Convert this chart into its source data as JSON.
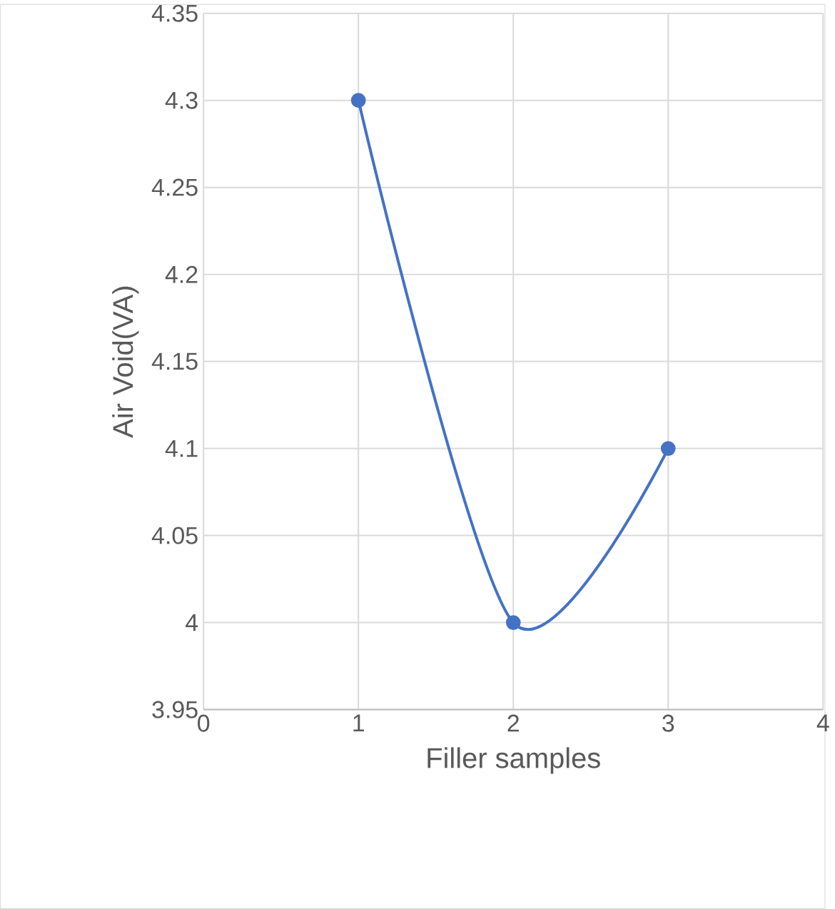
{
  "chart_data": {
    "type": "line",
    "xlabel": "Filler samples",
    "ylabel": "Air Void(VA)",
    "x": [
      1,
      2,
      3
    ],
    "series": [
      {
        "color": "#4472c4",
        "values": [
          4.3,
          4.0,
          4.1
        ]
      }
    ],
    "xlim": [
      0,
      4
    ],
    "xticks": [
      0,
      1,
      2,
      3,
      4
    ],
    "ylim": [
      3.95,
      4.35
    ],
    "yticks": [
      {
        "value": 3.95,
        "label": "3.95"
      },
      {
        "value": 4.0,
        "label": "4"
      },
      {
        "value": 4.05,
        "label": "4.05"
      },
      {
        "value": 4.1,
        "label": "4.1"
      },
      {
        "value": 4.15,
        "label": "4.15"
      },
      {
        "value": 4.2,
        "label": "4.2"
      },
      {
        "value": 4.25,
        "label": "4.25"
      },
      {
        "value": 4.3,
        "label": "4.3"
      },
      {
        "value": 4.35,
        "label": "4.35"
      }
    ],
    "grid": true,
    "marker": "circle",
    "line_style": "solid"
  }
}
